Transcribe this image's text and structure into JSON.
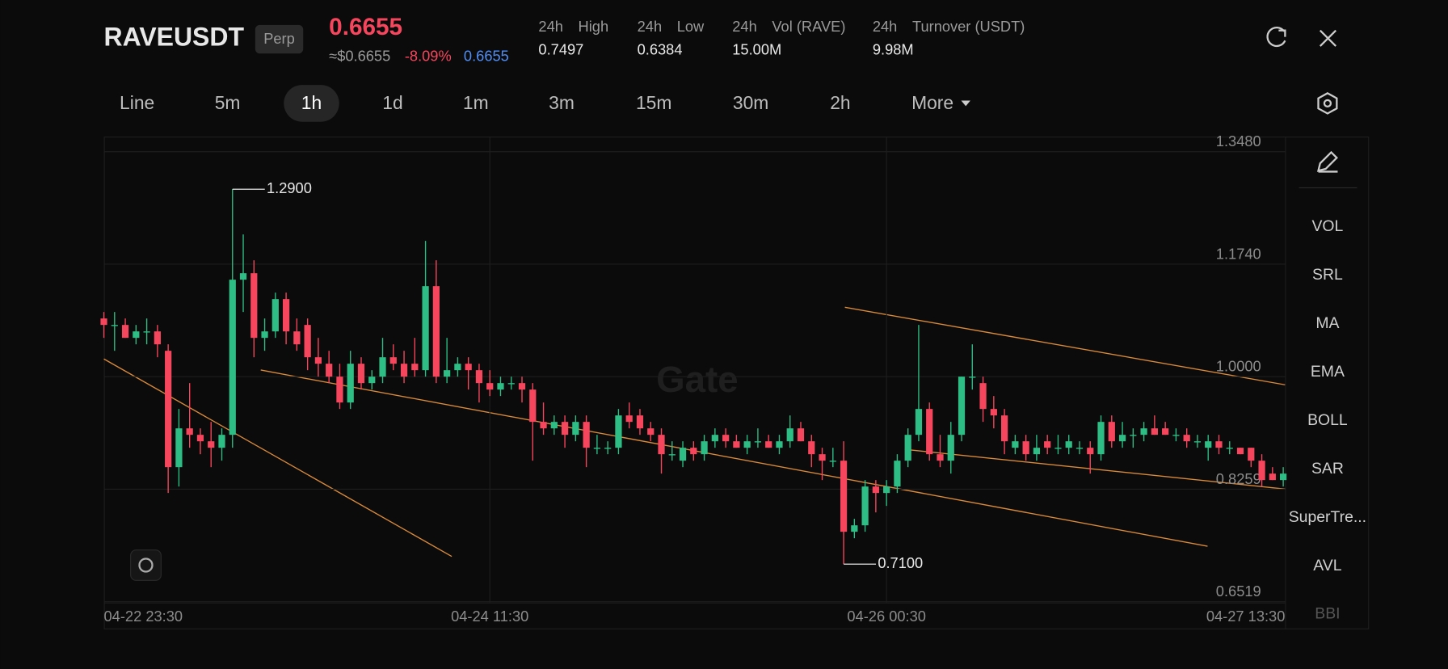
{
  "header": {
    "symbol": "RAVEUSDT",
    "badge": "Perp",
    "last_price": "0.6655",
    "approx_price": "≈$0.6655",
    "change": "-8.09%",
    "mark_price": "0.6655",
    "stats": [
      {
        "period": "24h",
        "label": "High",
        "value": "0.7497"
      },
      {
        "period": "24h",
        "label": "Low",
        "value": "0.6384"
      },
      {
        "period": "24h",
        "label": "Vol (RAVE)",
        "value": "15.00M"
      },
      {
        "period": "24h",
        "label": "Turnover (USDT)",
        "value": "9.98M"
      }
    ]
  },
  "timeframes": [
    "Line",
    "5m",
    "1h",
    "1d",
    "1m",
    "3m",
    "15m",
    "30m",
    "2h",
    "More"
  ],
  "active_timeframe": "1h",
  "indicators": [
    "VOL",
    "SRL",
    "MA",
    "EMA",
    "BOLL",
    "SAR",
    "SuperTre...",
    "AVL",
    "BBI"
  ],
  "watermark": "Gate",
  "chart_data": {
    "type": "candlestick",
    "up_color": "#2ebd85",
    "down_color": "#f6465d",
    "grid": true,
    "ylim": [
      0.6505,
      1.3714
    ],
    "yticks": [
      {
        "value": 1.348,
        "label": "1.3480"
      },
      {
        "value": 1.174,
        "label": "1.1740"
      },
      {
        "value": 1.0,
        "label": "1.0000"
      },
      {
        "value": 0.8259,
        "label": "0.8259"
      },
      {
        "value": 0.6519,
        "label": "0.6519"
      }
    ],
    "annotations": [
      {
        "value": 1.29,
        "label": "1.2900"
      },
      {
        "value": 0.71,
        "label": "0.7100"
      }
    ],
    "categories": [
      "04-22 23:30",
      null,
      null,
      null,
      null,
      null,
      null,
      null,
      null,
      null,
      null,
      null,
      null,
      null,
      null,
      null,
      null,
      null,
      null,
      null,
      null,
      null,
      null,
      null,
      null,
      null,
      null,
      null,
      null,
      null,
      null,
      null,
      null,
      null,
      null,
      null,
      "04-24 11:30",
      null,
      null,
      null,
      null,
      null,
      null,
      null,
      null,
      null,
      null,
      null,
      null,
      null,
      null,
      null,
      null,
      null,
      null,
      null,
      null,
      null,
      null,
      null,
      null,
      null,
      null,
      null,
      null,
      null,
      null,
      null,
      null,
      null,
      null,
      null,
      null,
      "04-26 00:30",
      null,
      null,
      null,
      null,
      null,
      null,
      null,
      null,
      null,
      null,
      null,
      null,
      null,
      null,
      null,
      null,
      null,
      null,
      null,
      null,
      null,
      null,
      null,
      null,
      null,
      null,
      null,
      null,
      null,
      null,
      null,
      null,
      null,
      null,
      null,
      null,
      "04-27 13:30"
    ],
    "ohlc": [
      [
        1.09,
        1.1,
        1.06,
        1.08
      ],
      [
        1.08,
        1.1,
        1.04,
        1.08
      ],
      [
        1.08,
        1.09,
        1.06,
        1.06
      ],
      [
        1.06,
        1.08,
        1.05,
        1.07
      ],
      [
        1.07,
        1.09,
        1.05,
        1.07
      ],
      [
        1.07,
        1.08,
        1.03,
        1.05
      ],
      [
        1.04,
        1.05,
        0.82,
        0.86
      ],
      [
        0.86,
        0.95,
        0.83,
        0.92
      ],
      [
        0.92,
        0.99,
        0.89,
        0.91
      ],
      [
        0.91,
        0.92,
        0.88,
        0.9
      ],
      [
        0.9,
        0.93,
        0.86,
        0.89
      ],
      [
        0.89,
        0.92,
        0.87,
        0.91
      ],
      [
        0.91,
        1.29,
        0.89,
        1.15
      ],
      [
        1.15,
        1.22,
        1.1,
        1.16
      ],
      [
        1.16,
        1.18,
        1.03,
        1.06
      ],
      [
        1.06,
        1.09,
        1.04,
        1.07
      ],
      [
        1.07,
        1.13,
        1.06,
        1.12
      ],
      [
        1.12,
        1.13,
        1.05,
        1.07
      ],
      [
        1.07,
        1.09,
        1.04,
        1.05
      ],
      [
        1.08,
        1.09,
        1.01,
        1.03
      ],
      [
        1.03,
        1.06,
        1.0,
        1.02
      ],
      [
        1.02,
        1.04,
        0.99,
        1.0
      ],
      [
        1.0,
        1.02,
        0.95,
        0.96
      ],
      [
        0.96,
        1.04,
        0.95,
        1.02
      ],
      [
        1.02,
        1.03,
        0.98,
        0.99
      ],
      [
        0.99,
        1.01,
        0.98,
        1.0
      ],
      [
        1.0,
        1.06,
        0.99,
        1.03
      ],
      [
        1.03,
        1.05,
        1.01,
        1.02
      ],
      [
        1.02,
        1.04,
        0.99,
        1.0
      ],
      [
        1.02,
        1.06,
        1.0,
        1.01
      ],
      [
        1.01,
        1.21,
        1.0,
        1.14
      ],
      [
        1.14,
        1.18,
        0.99,
        1.0
      ],
      [
        1.0,
        1.06,
        0.99,
        1.01
      ],
      [
        1.01,
        1.03,
        1.0,
        1.02
      ],
      [
        1.02,
        1.03,
        0.98,
        1.01
      ],
      [
        1.01,
        1.02,
        0.96,
        0.99
      ],
      [
        0.99,
        1.01,
        0.97,
        0.98
      ],
      [
        0.98,
        1.0,
        0.97,
        0.99
      ],
      [
        0.99,
        1.0,
        0.98,
        0.99
      ],
      [
        0.99,
        1.0,
        0.96,
        0.98
      ],
      [
        0.98,
        0.99,
        0.87,
        0.93
      ],
      [
        0.93,
        0.96,
        0.91,
        0.92
      ],
      [
        0.92,
        0.94,
        0.91,
        0.93
      ],
      [
        0.93,
        0.94,
        0.89,
        0.91
      ],
      [
        0.91,
        0.94,
        0.9,
        0.93
      ],
      [
        0.93,
        0.94,
        0.86,
        0.89
      ],
      [
        0.89,
        0.91,
        0.88,
        0.89
      ],
      [
        0.89,
        0.9,
        0.88,
        0.89
      ],
      [
        0.89,
        0.95,
        0.88,
        0.94
      ],
      [
        0.94,
        0.96,
        0.92,
        0.93
      ],
      [
        0.94,
        0.95,
        0.91,
        0.92
      ],
      [
        0.92,
        0.93,
        0.9,
        0.91
      ],
      [
        0.91,
        0.92,
        0.85,
        0.88
      ],
      [
        0.88,
        0.9,
        0.87,
        0.88
      ],
      [
        0.87,
        0.9,
        0.86,
        0.89
      ],
      [
        0.89,
        0.9,
        0.87,
        0.88
      ],
      [
        0.88,
        0.91,
        0.87,
        0.9
      ],
      [
        0.9,
        0.92,
        0.89,
        0.91
      ],
      [
        0.91,
        0.92,
        0.89,
        0.9
      ],
      [
        0.9,
        0.91,
        0.89,
        0.89
      ],
      [
        0.89,
        0.91,
        0.88,
        0.9
      ],
      [
        0.9,
        0.92,
        0.89,
        0.9
      ],
      [
        0.9,
        0.91,
        0.89,
        0.89
      ],
      [
        0.89,
        0.91,
        0.88,
        0.9
      ],
      [
        0.9,
        0.94,
        0.89,
        0.92
      ],
      [
        0.92,
        0.93,
        0.9,
        0.9
      ],
      [
        0.9,
        0.91,
        0.86,
        0.88
      ],
      [
        0.88,
        0.89,
        0.84,
        0.87
      ],
      [
        0.87,
        0.89,
        0.86,
        0.87
      ],
      [
        0.87,
        0.9,
        0.71,
        0.76
      ],
      [
        0.76,
        0.78,
        0.75,
        0.77
      ],
      [
        0.77,
        0.84,
        0.76,
        0.83
      ],
      [
        0.83,
        0.84,
        0.79,
        0.82
      ],
      [
        0.82,
        0.84,
        0.8,
        0.83
      ],
      [
        0.83,
        0.88,
        0.82,
        0.87
      ],
      [
        0.87,
        0.92,
        0.86,
        0.91
      ],
      [
        0.91,
        1.08,
        0.9,
        0.95
      ],
      [
        0.95,
        0.96,
        0.87,
        0.88
      ],
      [
        0.88,
        0.91,
        0.86,
        0.87
      ],
      [
        0.87,
        0.93,
        0.85,
        0.91
      ],
      [
        0.91,
        1.0,
        0.9,
        1.0
      ],
      [
        1.0,
        1.05,
        0.98,
        1.0
      ],
      [
        0.99,
        1.0,
        0.93,
        0.95
      ],
      [
        0.95,
        0.97,
        0.92,
        0.94
      ],
      [
        0.94,
        0.95,
        0.88,
        0.9
      ],
      [
        0.89,
        0.91,
        0.88,
        0.9
      ],
      [
        0.9,
        0.91,
        0.87,
        0.88
      ],
      [
        0.88,
        0.91,
        0.87,
        0.89
      ],
      [
        0.9,
        0.91,
        0.88,
        0.89
      ],
      [
        0.89,
        0.91,
        0.88,
        0.89
      ],
      [
        0.89,
        0.91,
        0.88,
        0.9
      ],
      [
        0.89,
        0.9,
        0.88,
        0.89
      ],
      [
        0.89,
        0.9,
        0.85,
        0.88
      ],
      [
        0.88,
        0.94,
        0.87,
        0.93
      ],
      [
        0.93,
        0.94,
        0.89,
        0.9
      ],
      [
        0.9,
        0.93,
        0.89,
        0.91
      ],
      [
        0.91,
        0.92,
        0.89,
        0.91
      ],
      [
        0.91,
        0.93,
        0.9,
        0.92
      ],
      [
        0.92,
        0.94,
        0.91,
        0.91
      ],
      [
        0.92,
        0.93,
        0.91,
        0.91
      ],
      [
        0.91,
        0.92,
        0.9,
        0.91
      ],
      [
        0.91,
        0.92,
        0.89,
        0.9
      ],
      [
        0.9,
        0.91,
        0.89,
        0.9
      ],
      [
        0.89,
        0.91,
        0.87,
        0.9
      ],
      [
        0.9,
        0.91,
        0.88,
        0.89
      ],
      [
        0.89,
        0.9,
        0.88,
        0.89
      ],
      [
        0.89,
        0.89,
        0.88,
        0.88
      ],
      [
        0.89,
        0.89,
        0.86,
        0.87
      ],
      [
        0.87,
        0.88,
        0.83,
        0.84
      ],
      [
        0.85,
        0.86,
        0.84,
        0.84
      ],
      [
        0.84,
        0.86,
        0.83,
        0.85
      ]
    ]
  }
}
